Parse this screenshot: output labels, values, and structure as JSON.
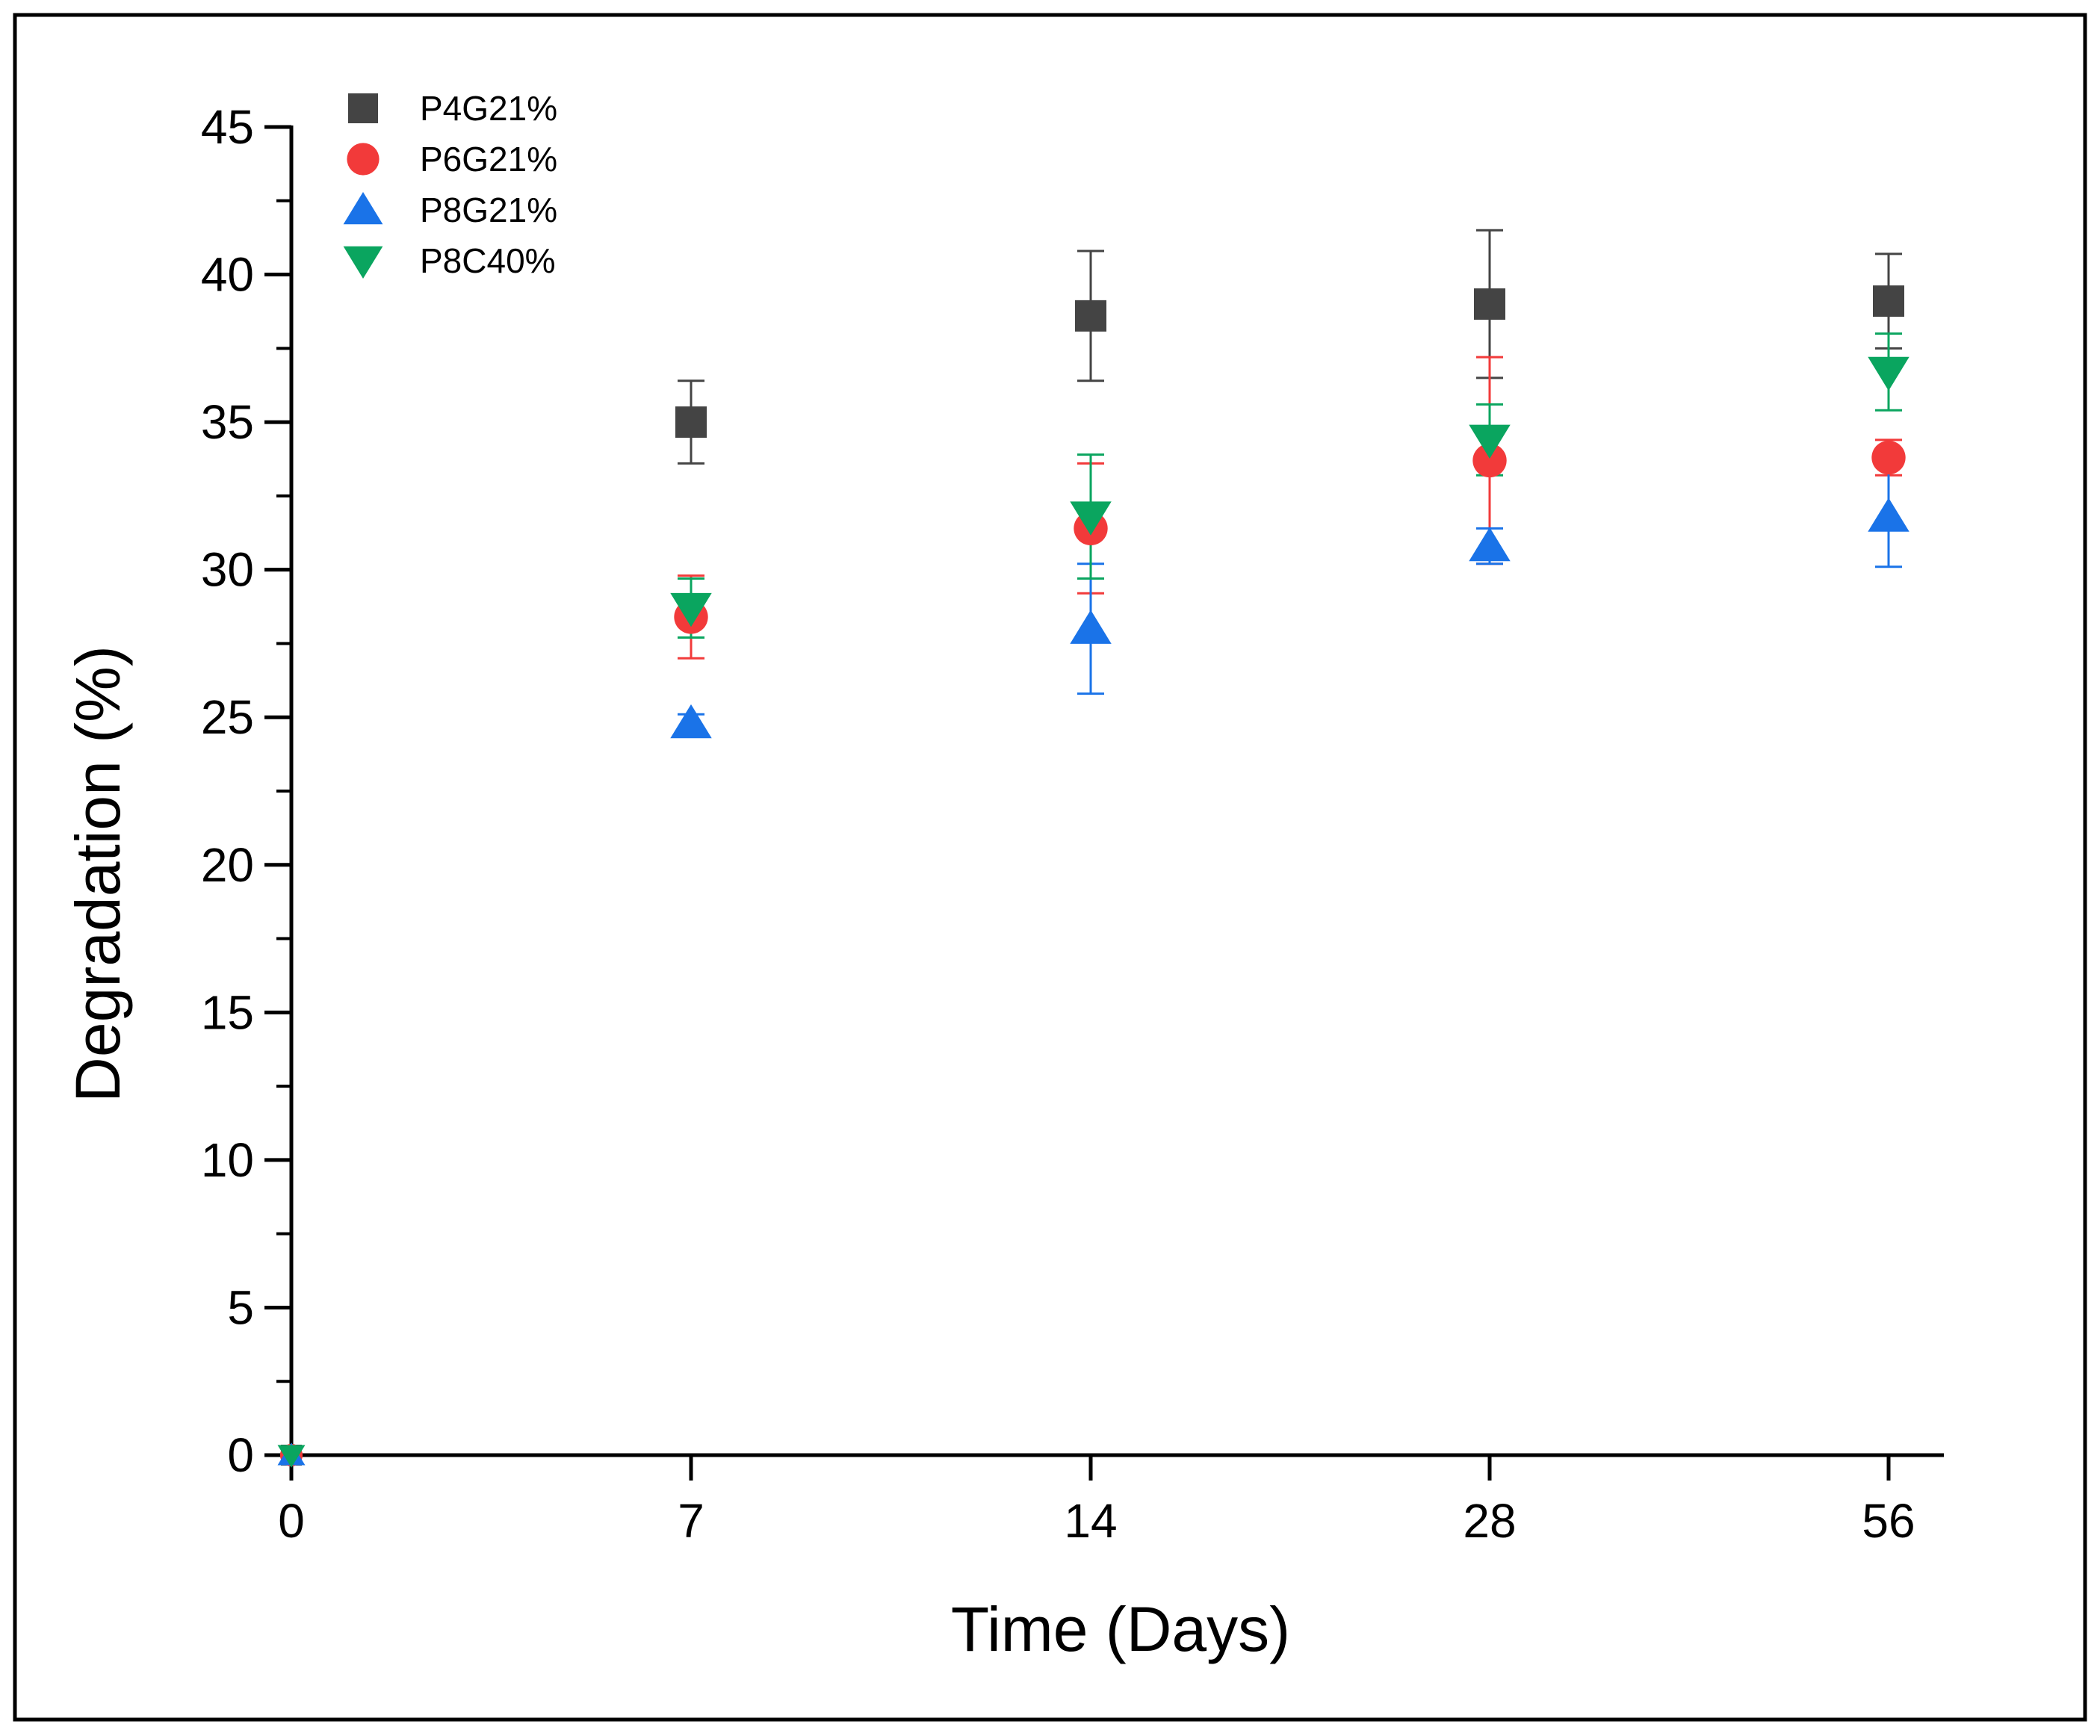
{
  "chart_data": {
    "type": "scatter",
    "title": "",
    "xlabel": "Time (Days)",
    "ylabel": "Degradation (%)",
    "x_categories": [
      "0",
      "7",
      "14",
      "28",
      "56"
    ],
    "ylim": [
      0,
      45
    ],
    "y_ticks": [
      "0",
      "5",
      "10",
      "15",
      "20",
      "25",
      "30",
      "35",
      "40",
      "45"
    ],
    "y_tick_values": [
      0,
      5,
      10,
      15,
      20,
      25,
      30,
      35,
      40,
      45
    ],
    "grid": false,
    "legend_position": "top-left",
    "series": [
      {
        "name": "P4G21%",
        "marker": "square",
        "color": "#444444",
        "values": [
          0,
          35.0,
          38.6,
          39.0,
          39.1
        ],
        "errors": [
          0,
          1.4,
          2.2,
          2.5,
          1.6
        ]
      },
      {
        "name": "P6G21%",
        "marker": "circle",
        "color": "#f23a3a",
        "values": [
          0,
          28.4,
          31.4,
          33.7,
          33.8
        ],
        "errors": [
          0,
          1.4,
          2.2,
          3.5,
          0.6
        ]
      },
      {
        "name": "P8G21%",
        "marker": "triangle-up",
        "color": "#1a73e8",
        "values": [
          0,
          24.8,
          28.0,
          30.8,
          31.8
        ],
        "errors": [
          0,
          0.3,
          2.2,
          0.6,
          1.7
        ]
      },
      {
        "name": "P8C40%",
        "marker": "triangle-down",
        "color": "#0aa55f",
        "values": [
          0,
          28.7,
          31.8,
          34.4,
          36.7
        ],
        "errors": [
          0,
          1.0,
          2.1,
          1.2,
          1.3
        ]
      }
    ]
  }
}
